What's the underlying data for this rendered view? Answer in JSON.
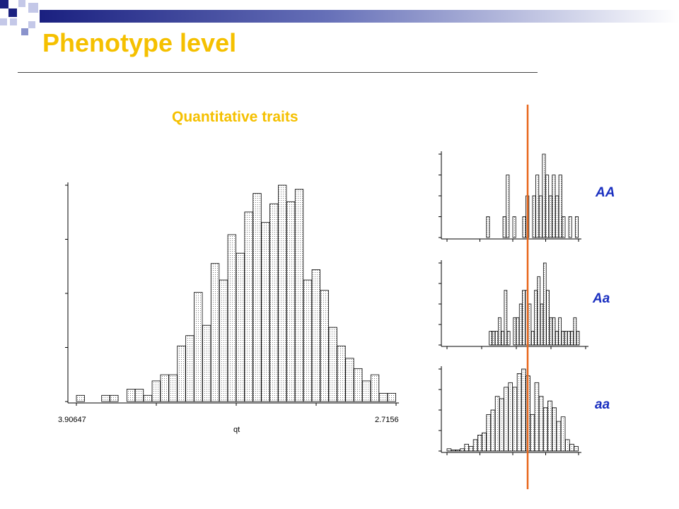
{
  "slide": {
    "title": "Phenotype level",
    "subtitle": "Quantitative traits",
    "accent_color": "#f5c000",
    "genotype_label_color": "#1a2fc0",
    "marker_line_color": "#e8661a"
  },
  "chart_data": [
    {
      "type": "bar",
      "name": "overall",
      "xlabel": "qt",
      "x_tick_labels": [
        "3.90647",
        "2.7156"
      ],
      "values": [
        0.3,
        0,
        0,
        0.3,
        0.3,
        0,
        0.6,
        0.6,
        0.3,
        1.0,
        1.3,
        1.3,
        2.7,
        3.2,
        5.3,
        3.7,
        6.7,
        5.9,
        8.1,
        7.2,
        9.2,
        10.1,
        8.7,
        9.6,
        10.5,
        9.7,
        10.3,
        5.9,
        6.4,
        5.4,
        3.6,
        2.7,
        2.1,
        1.6,
        1.0,
        1.3,
        0.4,
        0.4
      ],
      "grid": false
    },
    {
      "type": "bar",
      "name": "AA",
      "label": "AA",
      "values": [
        0,
        0,
        0,
        0,
        0,
        0,
        0,
        0,
        0,
        0,
        0,
        0,
        1,
        0,
        0,
        0,
        0,
        1,
        3,
        0,
        1,
        0,
        0,
        1,
        2,
        0,
        2,
        3,
        2,
        4,
        3,
        2,
        3,
        2,
        3,
        1,
        0,
        1,
        0,
        1
      ],
      "grid": false
    },
    {
      "type": "bar",
      "name": "Aa",
      "label": "Aa",
      "values": [
        0,
        0,
        0,
        0,
        0,
        0,
        0,
        0,
        0,
        0,
        0,
        0,
        0,
        0,
        1,
        1,
        1,
        2,
        1,
        4,
        1,
        0,
        2,
        2,
        3,
        4,
        4,
        3,
        1,
        4,
        5,
        3,
        6,
        4,
        2,
        2,
        1,
        2,
        1,
        1,
        1,
        1,
        2,
        1,
        0,
        0
      ],
      "grid": false
    },
    {
      "type": "bar",
      "name": "aa",
      "label": "aa",
      "values": [
        0.1,
        0.05,
        0.05,
        0.1,
        0.3,
        0.2,
        0.5,
        0.7,
        0.8,
        1.6,
        1.8,
        2.4,
        2.3,
        2.8,
        3.0,
        2.8,
        3.4,
        3.6,
        3.3,
        1.6,
        3.0,
        2.4,
        1.9,
        2.2,
        1.9,
        1.3,
        1.5,
        0.5,
        0.3,
        0.2
      ],
      "grid": false
    }
  ]
}
